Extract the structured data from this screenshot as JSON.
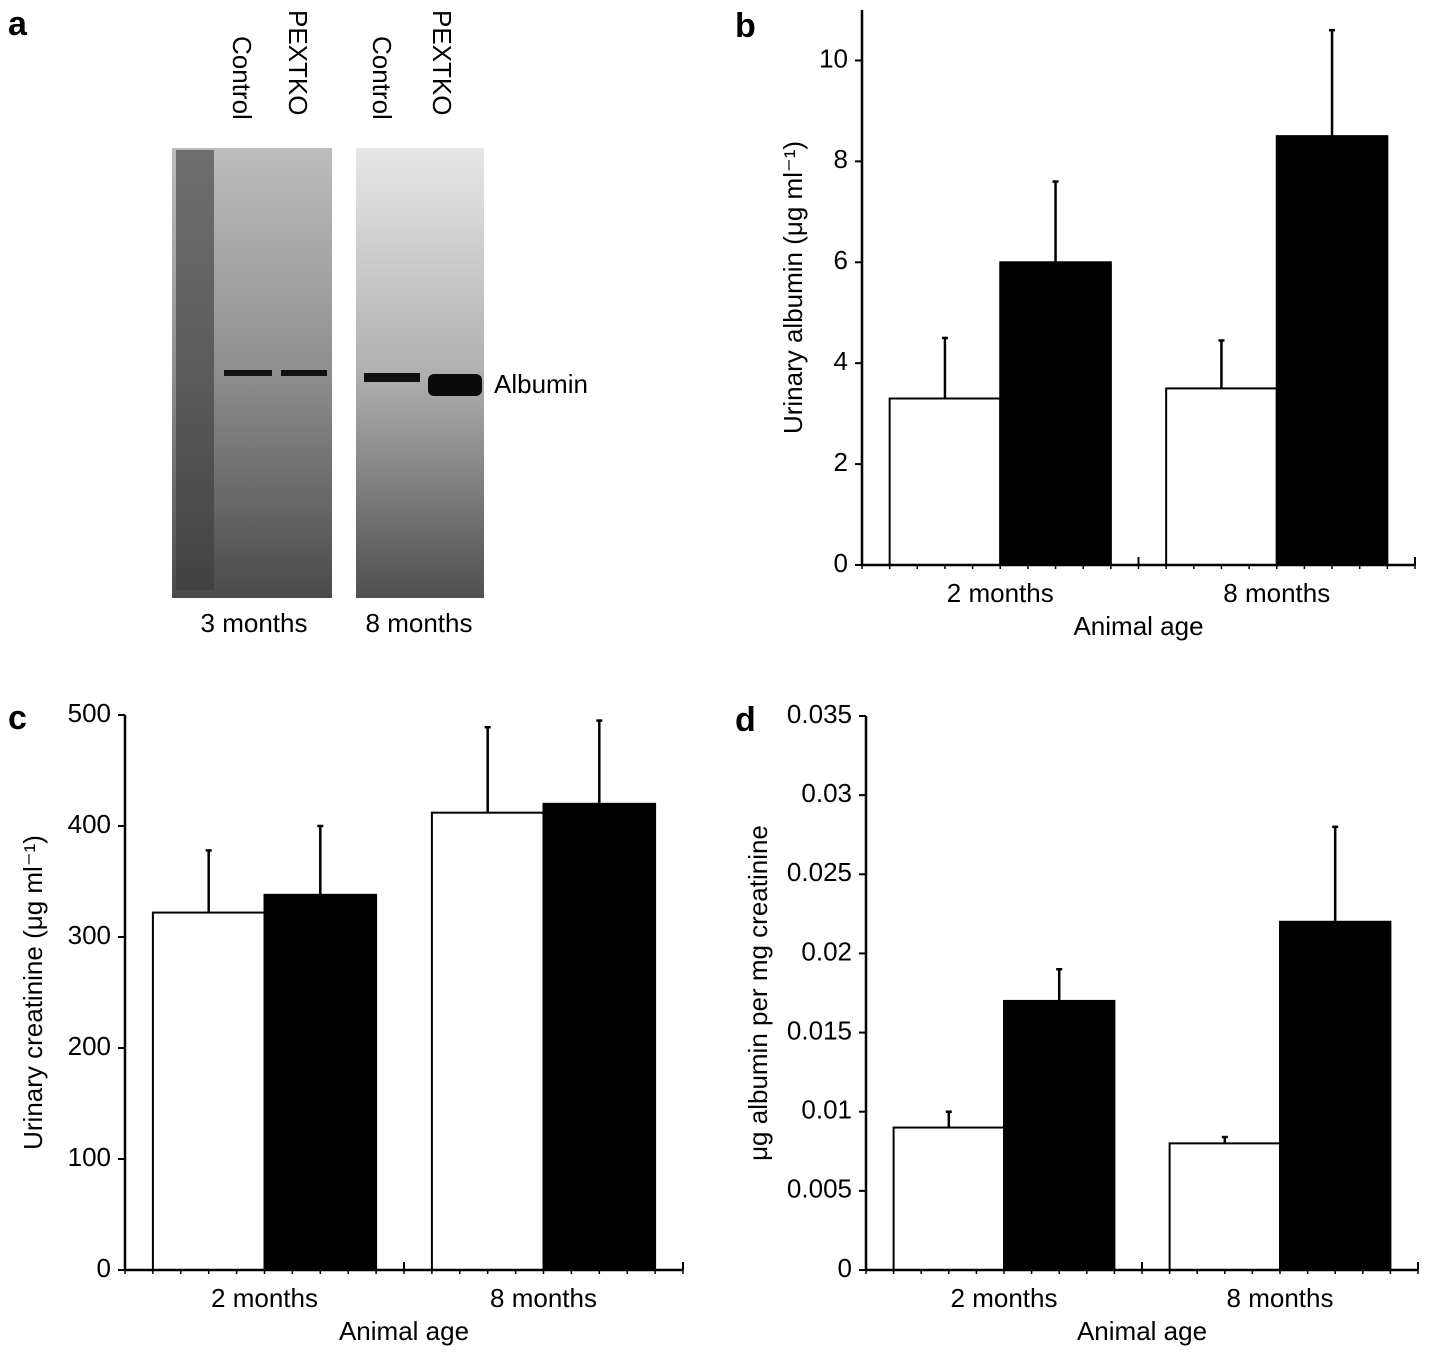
{
  "gel": {
    "panel": "a",
    "lanes": [
      "Control",
      "PEXTKO",
      "Control",
      "PEXTKO"
    ],
    "band_label": "Albumin",
    "groups": [
      "3 months",
      "8 months"
    ]
  },
  "chart_data": [
    {
      "type": "bar",
      "panel": "b",
      "y_label": "Urinary albumin (μg ml⁻¹)",
      "x_label": "Animal age",
      "categories": [
        "2 months",
        "8 months"
      ],
      "series": [
        {
          "color": "#ffffff",
          "values": [
            3.3,
            3.5
          ],
          "errors": [
            1.2,
            0.95
          ]
        },
        {
          "color": "#000000",
          "values": [
            6.0,
            8.5
          ],
          "errors": [
            1.6,
            2.1
          ]
        }
      ],
      "ylim": [
        0,
        11
      ],
      "yticks": [
        0,
        2,
        4,
        6,
        8,
        10
      ],
      "grid": false
    },
    {
      "type": "bar",
      "panel": "c",
      "y_label": "Urinary creatinine (μg ml⁻¹)",
      "x_label": "Animal age",
      "categories": [
        "2 months",
        "8 months"
      ],
      "series": [
        {
          "color": "#ffffff",
          "values": [
            322,
            412
          ],
          "errors": [
            56,
            77
          ]
        },
        {
          "color": "#000000",
          "values": [
            338,
            420
          ],
          "errors": [
            62,
            75
          ]
        }
      ],
      "ylim": [
        0,
        500
      ],
      "yticks": [
        0,
        100,
        200,
        300,
        400,
        500
      ],
      "grid": false
    },
    {
      "type": "bar",
      "panel": "d",
      "y_label": "μg albumin per mg creatinine",
      "x_label": "Animal age",
      "categories": [
        "2 months",
        "8 months"
      ],
      "series": [
        {
          "color": "#ffffff",
          "values": [
            0.009,
            0.008
          ],
          "errors": [
            0.001,
            0.0004
          ]
        },
        {
          "color": "#000000",
          "values": [
            0.017,
            0.022
          ],
          "errors": [
            0.002,
            0.006
          ]
        }
      ],
      "ylim": [
        0,
        0.035
      ],
      "yticks": [
        0,
        0.005,
        0.01,
        0.015,
        0.02,
        0.025,
        0.03,
        0.035
      ],
      "grid": false
    }
  ]
}
